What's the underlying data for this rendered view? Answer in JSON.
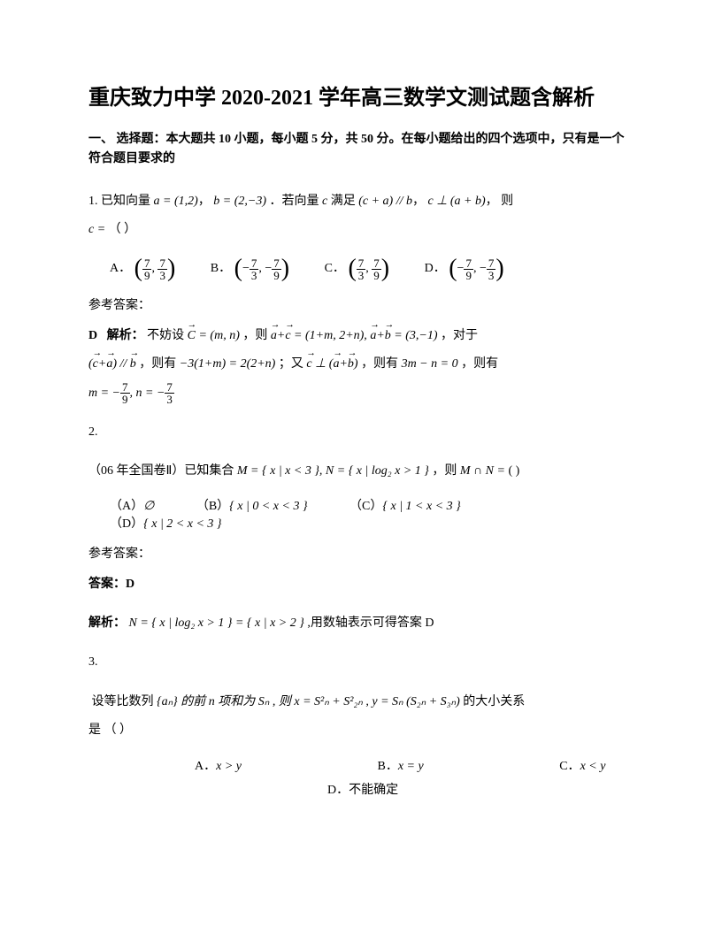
{
  "doc": {
    "title": "重庆致力中学 2020-2021 学年高三数学文测试题含解析",
    "section_intro": "一、 选择题：本大题共 10 小题，每小题 5 分，共 50 分。在每小题给出的四个选项中，只有是一个符合题目要求的",
    "colors": {
      "text": "#000000",
      "bg": "#ffffff"
    },
    "font": {
      "body_pt": 14,
      "title_pt": 24,
      "family": "SimSun"
    }
  },
  "q1": {
    "num": "1.",
    "pre": "已知向量",
    "a_eq": "a = (1,2)",
    "b_eq": "b = (2,−3)",
    "after_vectors": "．若向量",
    "c": "c",
    "satisfies": "满足",
    "cond1": "(c + a) // b",
    "cond2": "c ⊥ (a + b)",
    "then": "则",
    "c_eq": "c =",
    "blank": "（   ）",
    "opts": {
      "A": "A．",
      "B": "B．",
      "C": "C．",
      "D": "D．"
    },
    "fracs": {
      "A": {
        "x_num": "7",
        "x_den": "9",
        "y_num": "7",
        "y_den": "3",
        "x_neg": false,
        "y_neg": false
      },
      "B": {
        "x_num": "7",
        "x_den": "3",
        "y_num": "7",
        "y_den": "9",
        "x_neg": true,
        "y_neg": true
      },
      "C": {
        "x_num": "7",
        "x_den": "3",
        "y_num": "7",
        "y_den": "9",
        "x_neg": false,
        "y_neg": false
      },
      "D": {
        "x_num": "7",
        "x_den": "9",
        "y_num": "7",
        "y_den": "3",
        "x_neg": true,
        "y_neg": true
      }
    },
    "ans_label": "参考答案：",
    "ans_letter": "D",
    "analysis_label": "解析：",
    "step1_pre": "不妨设",
    "step1_c": "C = (m, n)",
    "step1_then": "，则",
    "step1_ac": "a + c = (1+m, 2+n), a + b = (3,−1)",
    "step1_end": "，对于",
    "step2_cond": "(c + a) // b",
    "step2_mid": "，则有",
    "step2_eq": "−3(1+m) = 2(2+n)",
    "step2_again": "；又",
    "step2_perp": "c ⊥ (a + b)",
    "step2_mid2": "，则有",
    "step2_eq2": "3m − n = 0",
    "step2_end": "，则有",
    "step3_m_label": "m = −",
    "step3_m_num": "7",
    "step3_m_den": "9",
    "step3_n_label": ", n = −",
    "step3_n_num": "7",
    "step3_n_den": "3"
  },
  "q2": {
    "num": "2.",
    "prefix": "（06 年全国卷Ⅱ）已知集合",
    "M": "M = { x | x < 3 }, N = { x | log₂ x > 1 }",
    "then": "，则",
    "MN": "M ∩ N =",
    "paren": "(   )",
    "opts": {
      "A_label": "（A）",
      "A_val": "∅",
      "B_label": "（B）",
      "B_val": "{ x | 0 < x < 3 }",
      "C_label": "（C）",
      "C_val": "{ x | 1 < x < 3 }",
      "D_label": "（D）",
      "D_val": "{ x | 2 < x < 3 }"
    },
    "ans_label": "参考答案：",
    "ans_line_label": "答案：",
    "ans_letter": "D",
    "analysis_label": "解析：",
    "analysis_eq": "N = { x | log₂ x > 1 } = { x | x > 2 }",
    "analysis_end": ",用数轴表示可得答案 D"
  },
  "q3": {
    "num": "3.",
    "pre": "设等比数列",
    "an": "{aₙ} 的前 n 项和为 Sₙ , 则 x = S²ₙ + S²₂ₙ , y = Sₙ (S₂ₙ + S₃ₙ)",
    "post": "的大小关系",
    "line2": "是            （    ）",
    "opts": {
      "A_label": "A．",
      "A_val": "x > y",
      "B_label": "B．",
      "B_val": "x = y",
      "C_label": "C．",
      "C_val": "x < y",
      "D_label": "D．",
      "D_val": "不能确定"
    }
  }
}
